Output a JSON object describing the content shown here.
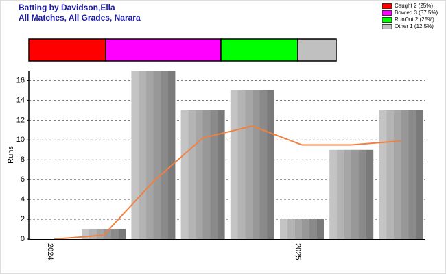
{
  "chart_data": [
    {
      "type": "proportion",
      "title": "Batting by Davidson,Ella",
      "subtitle": "All Matches, All Grades, Narara",
      "series": [
        {
          "name": "Caught 2 (25%)",
          "color": "#ff0000",
          "values": [
            2
          ]
        },
        {
          "name": "Bowled 3 (37.5%)",
          "color": "#ff00ff",
          "values": [
            3
          ]
        },
        {
          "name": "RunOut 2 (25%)",
          "color": "#00ff00",
          "values": [
            2
          ]
        },
        {
          "name": "Other 1 (12.5%)",
          "color": "#c0c0c0",
          "values": [
            1
          ]
        }
      ]
    },
    {
      "type": "bar",
      "y_label": "Runs",
      "categories": [
        "2024",
        null,
        null,
        null,
        null,
        "2025",
        null,
        null
      ],
      "series": [
        {
          "type": "bar",
          "color": "#a8a8a8",
          "values": [
            0,
            1,
            17,
            13,
            15,
            2,
            9,
            13
          ]
        },
        {
          "type": "line",
          "color": "#f08040",
          "values": [
            0,
            0.4,
            5.8,
            10.2,
            11.4,
            9.5,
            9.5,
            9.9
          ]
        }
      ],
      "ylim": [
        0,
        17
      ],
      "yticks": [
        0,
        2,
        4,
        6,
        8,
        10,
        12,
        14,
        16
      ],
      "grid": true
    }
  ]
}
